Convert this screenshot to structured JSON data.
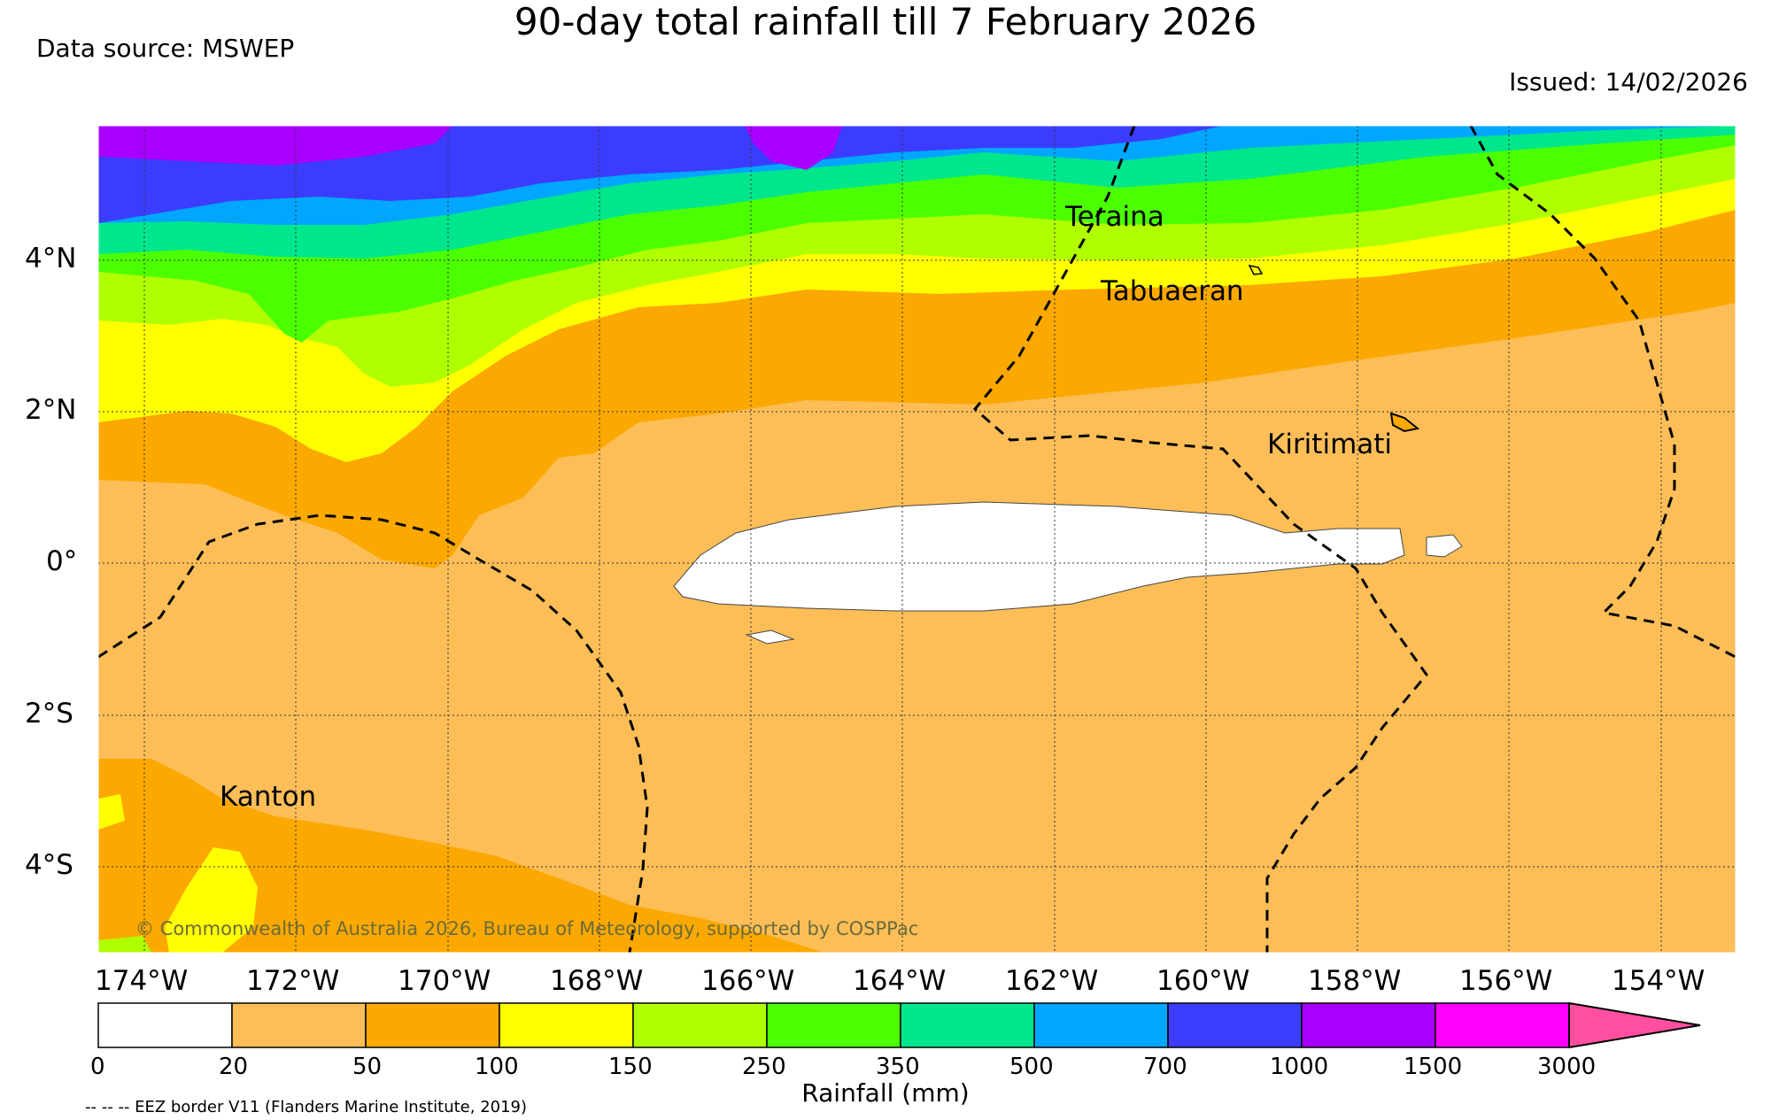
{
  "header": {
    "title": "90-day total rainfall till 7 February 2026",
    "source": "Data source: MSWEP",
    "issued": "Issued: 14/02/2026"
  },
  "map": {
    "lat_labels": [
      "4°N",
      "2°N",
      "0°",
      "2°S",
      "4°S"
    ],
    "lon_labels": [
      "174°W",
      "172°W",
      "170°W",
      "168°W",
      "166°W",
      "164°W",
      "162°W",
      "160°W",
      "158°W",
      "156°W",
      "154°W"
    ],
    "places": {
      "teraina": "Teraina",
      "tabuaeran": "Tabuaeran",
      "kiritimati": "Kiritimati",
      "kanton": "Kanton"
    },
    "copyright": "© Commonwealth of Australia 2026, Bureau of Meteorology, supported by COSPPac",
    "eez_note": "-- -- -- EEZ border V11 (Flanders Marine Institute, 2019)"
  },
  "colorbar": {
    "label": "Rainfall (mm)",
    "ticks": [
      "0",
      "20",
      "50",
      "100",
      "150",
      "250",
      "350",
      "500",
      "700",
      "1000",
      "1500",
      "3000"
    ],
    "colors": [
      "#ffffff",
      "#fdbe58",
      "#fba800",
      "#ffff00",
      "#b0ff00",
      "#4cff00",
      "#00e68c",
      "#00a6ff",
      "#3c3cff",
      "#a800ff",
      "#ff00ff",
      "#ff4fa0"
    ]
  }
}
